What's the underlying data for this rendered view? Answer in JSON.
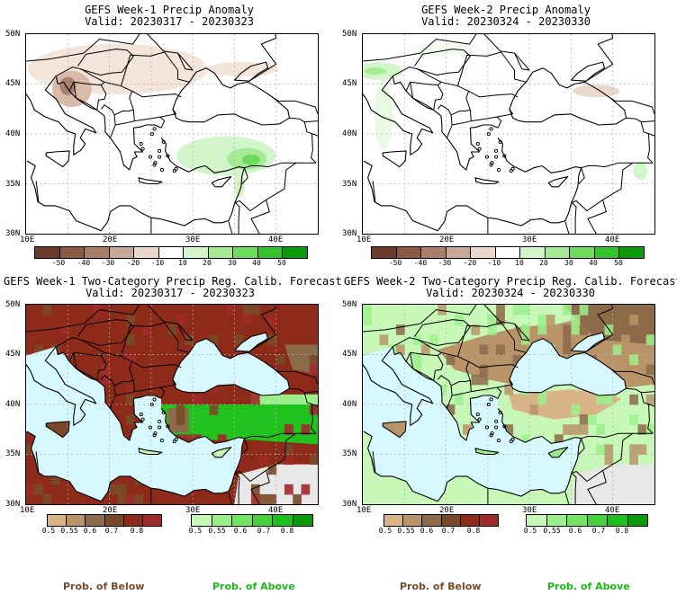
{
  "panels": [
    {
      "title": "GEFS Week-1 Precip Anomaly",
      "valid": "Valid: 20230317 - 20230323",
      "kind": "anomaly",
      "lat_labels": [
        "50N",
        "45N",
        "40N",
        "35N",
        "30N"
      ],
      "lon_labels": [
        "10E",
        "20E",
        "30E",
        "40E"
      ]
    },
    {
      "title": "GEFS Week-2 Precip Anomaly",
      "valid": "Valid: 20230324 - 20230330",
      "kind": "anomaly",
      "lat_labels": [
        "50N",
        "45N",
        "40N",
        "35N",
        "30N"
      ],
      "lon_labels": [
        "10E",
        "20E",
        "30E",
        "40E"
      ]
    },
    {
      "title": "GEFS Week-1 Two-Category Precip Reg. Calib. Forecast",
      "valid": "Valid: 20230317 - 20230323",
      "kind": "prob",
      "lat_labels": [
        "50N",
        "45N",
        "40N",
        "35N",
        "30N"
      ],
      "lon_labels": [
        "10E",
        "20E",
        "30E",
        "40E"
      ]
    },
    {
      "title": "GEFS Week-2 Two-Category Precip Reg. Calib. Forecast",
      "valid": "Valid: 20230324 - 20230330",
      "kind": "prob",
      "lat_labels": [
        "50N",
        "45N",
        "40N",
        "35N",
        "30N"
      ],
      "lon_labels": [
        "10E",
        "20E",
        "30E",
        "40E"
      ]
    }
  ],
  "anomaly_colorbar": {
    "labels": [
      "-50",
      "-40",
      "-30",
      "-20",
      "-10",
      "10",
      "20",
      "30",
      "40",
      "50"
    ],
    "colors": [
      "#6b3a2a",
      "#8a5a44",
      "#a8806a",
      "#c8a898",
      "#ead8cc",
      "#ffffff",
      "#d2f5cc",
      "#a6ea98",
      "#6fdb5c",
      "#36c22a",
      "#0c9a0c"
    ]
  },
  "below_colorbar": {
    "labels": [
      "0.5",
      "0.55",
      "0.6",
      "0.7",
      "0.8"
    ],
    "colors": [
      "#d8b486",
      "#b89468",
      "#8c6a4a",
      "#7a4a28",
      "#8e2a1a",
      "#a02a2a"
    ]
  },
  "above_colorbar": {
    "labels": [
      "0.5",
      "0.55",
      "0.6",
      "0.7",
      "0.8"
    ],
    "colors": [
      "#c8f8b8",
      "#9cf08c",
      "#74e464",
      "#46d23a",
      "#1cc01c",
      "#0a9a0a"
    ]
  },
  "legend": {
    "below_label": "Prob. of Below",
    "above_label": "Prob. of Above",
    "below_color": "#7a4a28",
    "above_color": "#1cb81c"
  },
  "colors": {
    "sea_prob": "#d8f8ff",
    "masked_land": "#e8e8e8",
    "grid": "#b0b0b0"
  }
}
